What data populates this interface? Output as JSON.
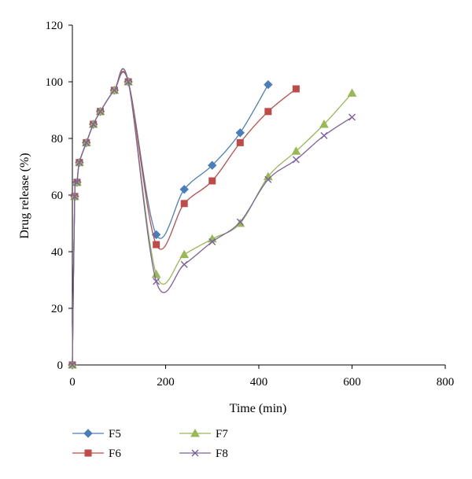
{
  "chart_data": {
    "type": "line",
    "title": "",
    "xlabel": "Time (min)",
    "ylabel": "Drug release (%)",
    "xlim": [
      0,
      800
    ],
    "ylim": [
      0,
      120
    ],
    "x_ticks": [
      0,
      200,
      400,
      600,
      800
    ],
    "y_ticks": [
      0,
      20,
      40,
      60,
      80,
      100,
      120
    ],
    "grid": false,
    "legend_position": "bottom-left",
    "series": [
      {
        "name": "F5",
        "color": "#4A7EBB",
        "marker": "diamond",
        "x": [
          0,
          5,
          10,
          15,
          30,
          45,
          60,
          90,
          120,
          180,
          240,
          300,
          360,
          420
        ],
        "y": [
          0,
          59.5,
          64.5,
          71.5,
          78.5,
          85,
          89.5,
          97,
          100,
          46,
          62,
          70.5,
          82,
          99
        ]
      },
      {
        "name": "F6",
        "color": "#BE4B48",
        "marker": "square",
        "x": [
          0,
          5,
          10,
          15,
          30,
          45,
          60,
          90,
          120,
          180,
          240,
          300,
          360,
          420,
          480
        ],
        "y": [
          0,
          59.5,
          64.5,
          71.5,
          78.5,
          85,
          89.5,
          97,
          100,
          42.5,
          57,
          65,
          78.5,
          89.5,
          97.5
        ]
      },
      {
        "name": "F7",
        "color": "#98B954",
        "marker": "triangle",
        "x": [
          0,
          5,
          10,
          15,
          30,
          45,
          60,
          90,
          120,
          180,
          240,
          300,
          360,
          420,
          480,
          540,
          600
        ],
        "y": [
          0,
          59.5,
          64.5,
          71.5,
          78.5,
          85,
          89.5,
          97,
          100,
          32,
          39,
          44.5,
          50,
          66.5,
          75.5,
          85,
          96
        ]
      },
      {
        "name": "F8",
        "color": "#7D60A0",
        "marker": "x",
        "x": [
          0,
          5,
          10,
          15,
          30,
          45,
          60,
          90,
          120,
          180,
          240,
          300,
          360,
          420,
          480,
          540,
          600
        ],
        "y": [
          0,
          59.5,
          64.5,
          71.5,
          78.5,
          85,
          89.5,
          97,
          100,
          29.5,
          35.5,
          43.5,
          50.5,
          65.5,
          72.5,
          81,
          87.5
        ]
      }
    ]
  }
}
